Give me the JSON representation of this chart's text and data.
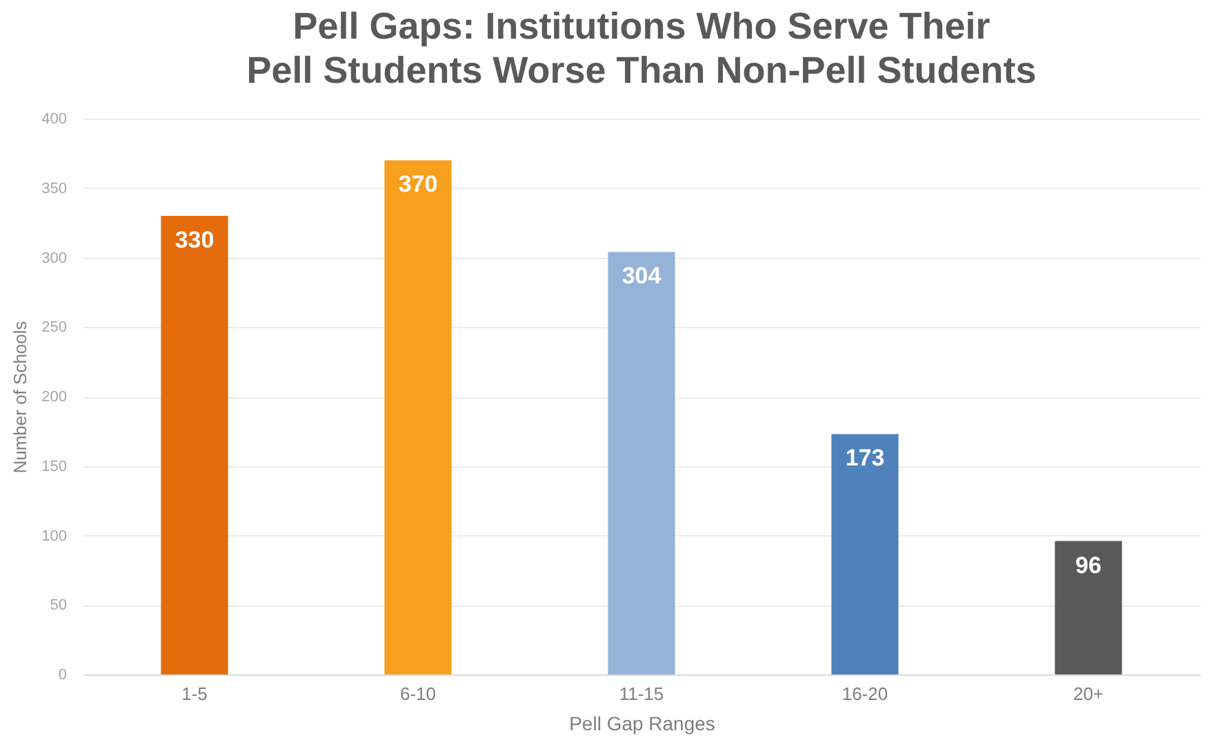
{
  "chart_data": {
    "type": "bar",
    "title": "Pell Gaps: Institutions Who Serve Their Pell Students Worse Than Non-Pell Students",
    "xlabel": "Pell Gap Ranges",
    "ylabel": "Number of Schools",
    "categories": [
      "1-5",
      "6-10",
      "11-15",
      "16-20",
      "20+"
    ],
    "values": [
      330,
      370,
      304,
      173,
      96
    ],
    "colors": [
      "#e46c0a",
      "#f8a01d",
      "#95b3d7",
      "#4f81bd",
      "#595959"
    ],
    "ylim": [
      0,
      400
    ],
    "yticks": [
      0,
      50,
      100,
      150,
      200,
      250,
      300,
      350,
      400
    ],
    "grid": "y",
    "data_labels": true
  }
}
